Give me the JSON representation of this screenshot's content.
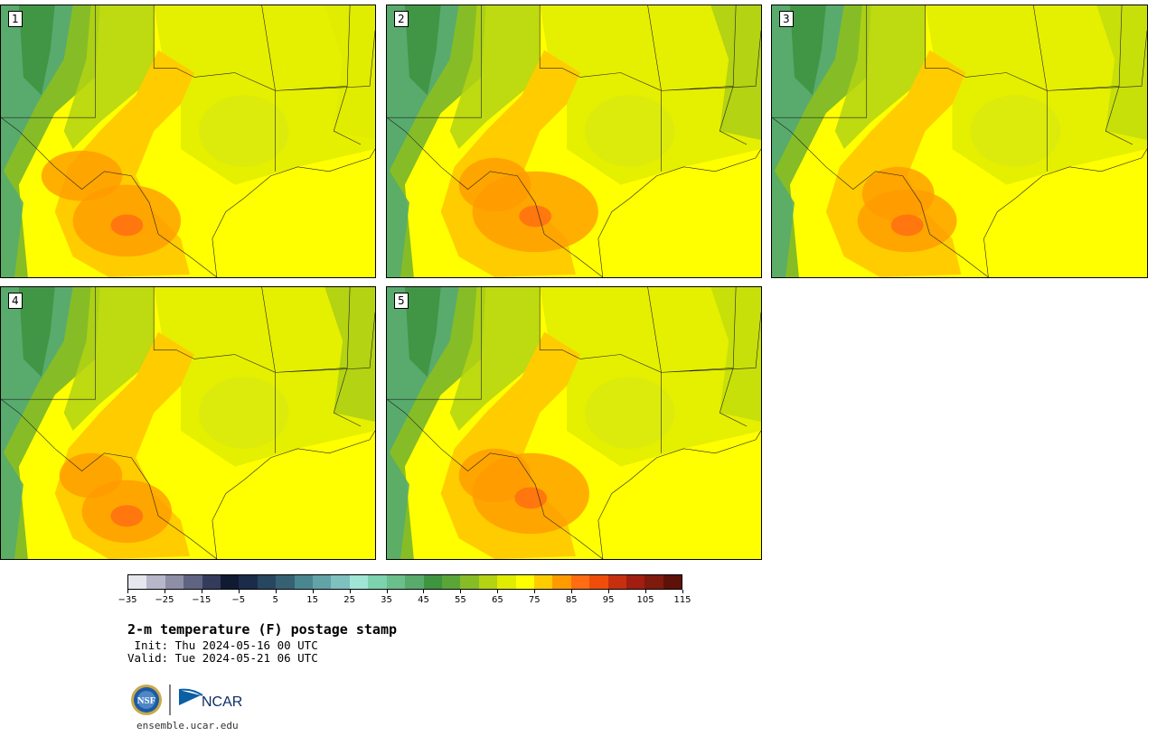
{
  "panels": [
    {
      "label": "1"
    },
    {
      "label": "2"
    },
    {
      "label": "3"
    },
    {
      "label": "4"
    },
    {
      "label": "5"
    }
  ],
  "colorbar": {
    "colors": [
      "#e6e6ee",
      "#b7b7c9",
      "#8e8ea6",
      "#5f6482",
      "#343c5c",
      "#111a33",
      "#1b2b4a",
      "#27465f",
      "#356173",
      "#4a8690",
      "#62a3a8",
      "#7fc1bf",
      "#9fe6d6",
      "#7cd3ad",
      "#6bbf8a",
      "#58ab6d",
      "#3f9440",
      "#5aa537",
      "#86bd26",
      "#b3d313",
      "#e0ec00",
      "#ffff00",
      "#ffcc00",
      "#ff9b00",
      "#ff6c12",
      "#f04d0a",
      "#c7300e",
      "#a11e10",
      "#801a0d",
      "#5e1108"
    ],
    "tick_labels": [
      "−35",
      "−25",
      "−15",
      "−5",
      "5",
      "15",
      "25",
      "35",
      "45",
      "55",
      "65",
      "75",
      "85",
      "95",
      "105",
      "115"
    ]
  },
  "title": "2-m temperature (F) postage stamp",
  "init": " Init: Thu 2024-05-16 00 UTC",
  "valid": "Valid: Tue 2024-05-21 06 UTC",
  "logos": {
    "nsf": "NSF",
    "ncar": "NCAR"
  },
  "website": "ensemble.ucar.edu"
}
